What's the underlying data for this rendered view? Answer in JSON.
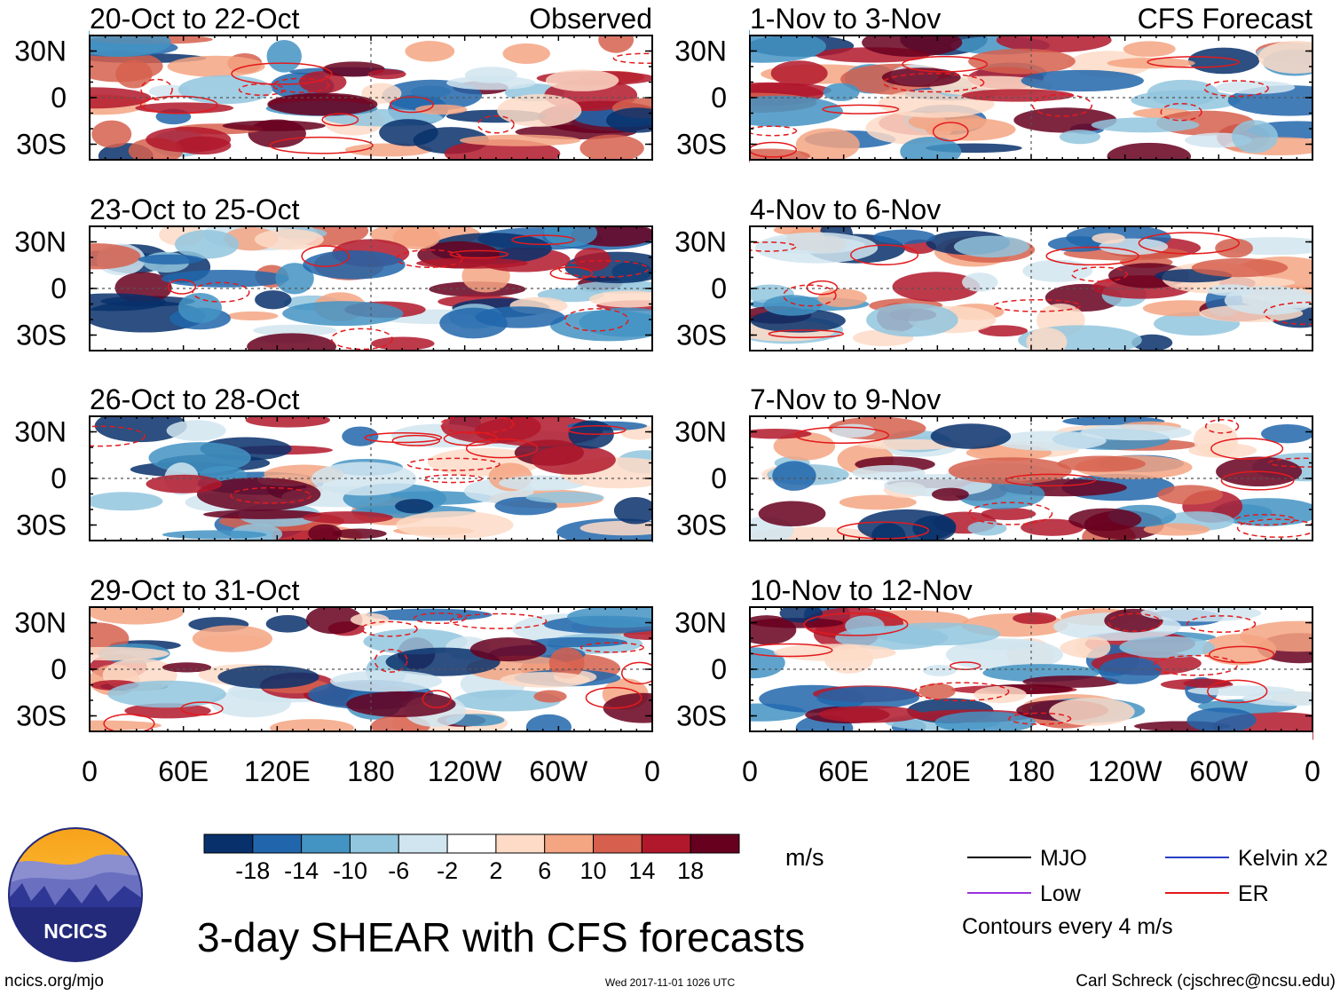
{
  "chart_data": {
    "type": "heatmap",
    "title": "3-day SHEAR with CFS forecasts",
    "variable": "SHEAR",
    "units": "m/s",
    "colorbar": {
      "tick_labels": [
        "-18",
        "-14",
        "-10",
        "-6",
        "-2",
        "2",
        "6",
        "10",
        "14",
        "18"
      ],
      "colors": [
        "#08306b",
        "#2166ac",
        "#4393c3",
        "#92c5de",
        "#d1e5f0",
        "#ffffff",
        "#fddbc7",
        "#f4a582",
        "#d6604d",
        "#b2182b",
        "#67001f"
      ]
    },
    "columns": [
      {
        "label": "Observed",
        "side": "left"
      },
      {
        "label": "CFS Forecast",
        "side": "right"
      }
    ],
    "panels": [
      {
        "title": "20-Oct to 22-Oct",
        "column": "Observed",
        "row": 1
      },
      {
        "title": "23-Oct to 25-Oct",
        "column": "Observed",
        "row": 2
      },
      {
        "title": "26-Oct to 28-Oct",
        "column": "Observed",
        "row": 3
      },
      {
        "title": "29-Oct to 31-Oct",
        "column": "Observed",
        "row": 4
      },
      {
        "title": "1-Nov to 3-Nov",
        "column": "CFS Forecast",
        "row": 1
      },
      {
        "title": "4-Nov to 6-Nov",
        "column": "CFS Forecast",
        "row": 2
      },
      {
        "title": "7-Nov to 9-Nov",
        "column": "CFS Forecast",
        "row": 3
      },
      {
        "title": "10-Nov to 12-Nov",
        "column": "CFS Forecast",
        "row": 4
      }
    ],
    "x_ticks": [
      "0",
      "60E",
      "120E",
      "180",
      "120W",
      "60W",
      "0"
    ],
    "y_ticks": [
      "30N",
      "0",
      "30S"
    ],
    "xlim": [
      0,
      360
    ],
    "ylim": [
      -40,
      40
    ],
    "legend": {
      "entries": [
        {
          "label": "MJO",
          "color": "#000000"
        },
        {
          "label": "Kelvin x2",
          "color": "#2b3fc7"
        },
        {
          "label": "Low",
          "color": "#9b30e0"
        },
        {
          "label": "ER",
          "color": "#e31a1c"
        }
      ],
      "note": "Contours every 4 m/s"
    }
  },
  "logo": {
    "text": "NCICS"
  },
  "footer": {
    "url": "ncics.org/mjo",
    "timestamp": "Wed 2017-11-01 1026 UTC",
    "credit": "Carl Schreck (cjschrec@ncsu.edu)"
  }
}
